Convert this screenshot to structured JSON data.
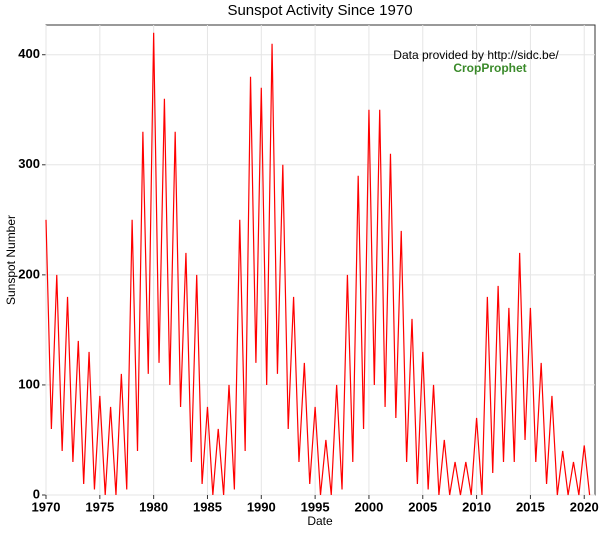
{
  "chart_data": {
    "type": "line",
    "title": "Sunspot Activity Since 1970",
    "x_label": "Date",
    "y_label": "Sunspot Number",
    "annotation": "Data provided by http://sidc.be/",
    "logo": "CropProphet",
    "color": "#ff0000",
    "grid": true,
    "xlim": [
      1970,
      2021
    ],
    "ylim": [
      0,
      427
    ],
    "xticks": [
      1970,
      1975,
      1980,
      1985,
      1990,
      1995,
      2000,
      2005,
      2010,
      2015,
      2020
    ],
    "yticks": [
      0,
      100,
      200,
      300,
      400
    ],
    "x": [
      1970,
      1970.5,
      1971,
      1971.5,
      1972,
      1972.5,
      1973,
      1973.5,
      1974,
      1974.5,
      1975,
      1975.5,
      1976,
      1976.5,
      1977,
      1977.5,
      1978,
      1978.5,
      1979,
      1979.5,
      1980,
      1980.5,
      1981,
      1981.5,
      1982,
      1982.5,
      1983,
      1983.5,
      1984,
      1984.5,
      1985,
      1985.5,
      1986,
      1986.5,
      1987,
      1987.5,
      1988,
      1988.5,
      1989,
      1989.5,
      1990,
      1990.5,
      1991,
      1991.5,
      1992,
      1992.5,
      1993,
      1993.5,
      1994,
      1994.5,
      1995,
      1995.5,
      1996,
      1996.5,
      1997,
      1997.5,
      1998,
      1998.5,
      1999,
      1999.5,
      2000,
      2000.5,
      2001,
      2001.5,
      2002,
      2002.5,
      2003,
      2003.5,
      2004,
      2004.5,
      2005,
      2005.5,
      2006,
      2006.5,
      2007,
      2007.5,
      2008,
      2008.5,
      2009,
      2009.5,
      2010,
      2010.5,
      2011,
      2011.5,
      2012,
      2012.5,
      2013,
      2013.5,
      2014,
      2014.5,
      2015,
      2015.5,
      2016,
      2016.5,
      2017,
      2017.5,
      2018,
      2018.5,
      2019,
      2019.5,
      2020,
      2020.5
    ],
    "values": [
      250,
      60,
      200,
      40,
      180,
      30,
      140,
      10,
      130,
      5,
      90,
      0,
      80,
      0,
      110,
      5,
      250,
      40,
      330,
      110,
      420,
      120,
      360,
      100,
      330,
      80,
      220,
      30,
      200,
      10,
      80,
      0,
      60,
      0,
      100,
      5,
      250,
      40,
      380,
      120,
      370,
      100,
      410,
      110,
      300,
      60,
      180,
      30,
      120,
      10,
      80,
      0,
      50,
      0,
      100,
      5,
      200,
      30,
      290,
      60,
      350,
      100,
      350,
      80,
      310,
      70,
      240,
      30,
      160,
      10,
      130,
      5,
      100,
      0,
      50,
      0,
      30,
      0,
      30,
      0,
      70,
      0,
      180,
      20,
      190,
      30,
      170,
      30,
      220,
      50,
      170,
      30,
      120,
      10,
      90,
      0,
      40,
      0,
      30,
      0,
      45,
      0
    ]
  }
}
